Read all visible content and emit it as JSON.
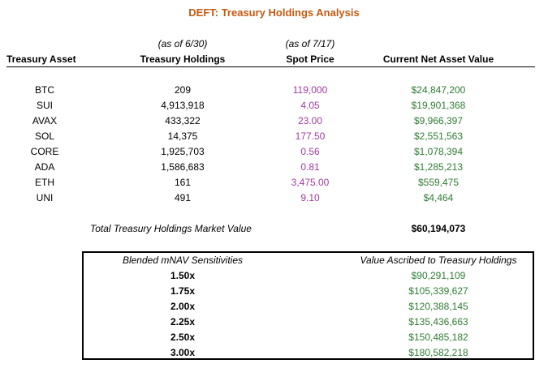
{
  "title": "DEFT: Treasury Holdings Analysis",
  "colors": {
    "title": "#c55a11",
    "price": "#a33aa3",
    "value": "#2e7d32",
    "text": "#000000"
  },
  "header": {
    "holdings_note": "(as of 6/30)",
    "price_note": "(as of 7/17)",
    "asset": "Treasury Asset",
    "holdings": "Treasury Holdings",
    "price": "Spot Price",
    "nav": "Current Net Asset Value"
  },
  "rows": [
    {
      "asset": "BTC",
      "holdings": "209",
      "price": "119,000",
      "nav": "$24,847,200"
    },
    {
      "asset": "SUI",
      "holdings": "4,913,918",
      "price": "4.05",
      "nav": "$19,901,368"
    },
    {
      "asset": "AVAX",
      "holdings": "433,322",
      "price": "23.00",
      "nav": "$9,966,397"
    },
    {
      "asset": "SOL",
      "holdings": "14,375",
      "price": "177.50",
      "nav": "$2,551,563"
    },
    {
      "asset": "CORE",
      "holdings": "1,925,703",
      "price": "0.56",
      "nav": "$1,078,394"
    },
    {
      "asset": "ADA",
      "holdings": "1,586,683",
      "price": "0.81",
      "nav": "$1,285,213"
    },
    {
      "asset": "ETH",
      "holdings": "161",
      "price": "3,475.00",
      "nav": "$559,475"
    },
    {
      "asset": "UNI",
      "holdings": "491",
      "price": "9.10",
      "nav": "$4,464"
    }
  ],
  "total": {
    "label": "Total Treasury Holdings Market Value",
    "value": "$60,194,073"
  },
  "sensitivity": {
    "mult_header": "Blended mNAV Sensitivities",
    "value_header": "Value Ascribed to Treasury Holdings",
    "rows": [
      {
        "mult": "1.50x",
        "value": "$90,291,109"
      },
      {
        "mult": "1.75x",
        "value": "$105,339,627"
      },
      {
        "mult": "2.00x",
        "value": "$120,388,145"
      },
      {
        "mult": "2.25x",
        "value": "$135,436,663"
      },
      {
        "mult": "2.50x",
        "value": "$150,485,182"
      },
      {
        "mult": "3.00x",
        "value": "$180,582,218"
      }
    ]
  }
}
